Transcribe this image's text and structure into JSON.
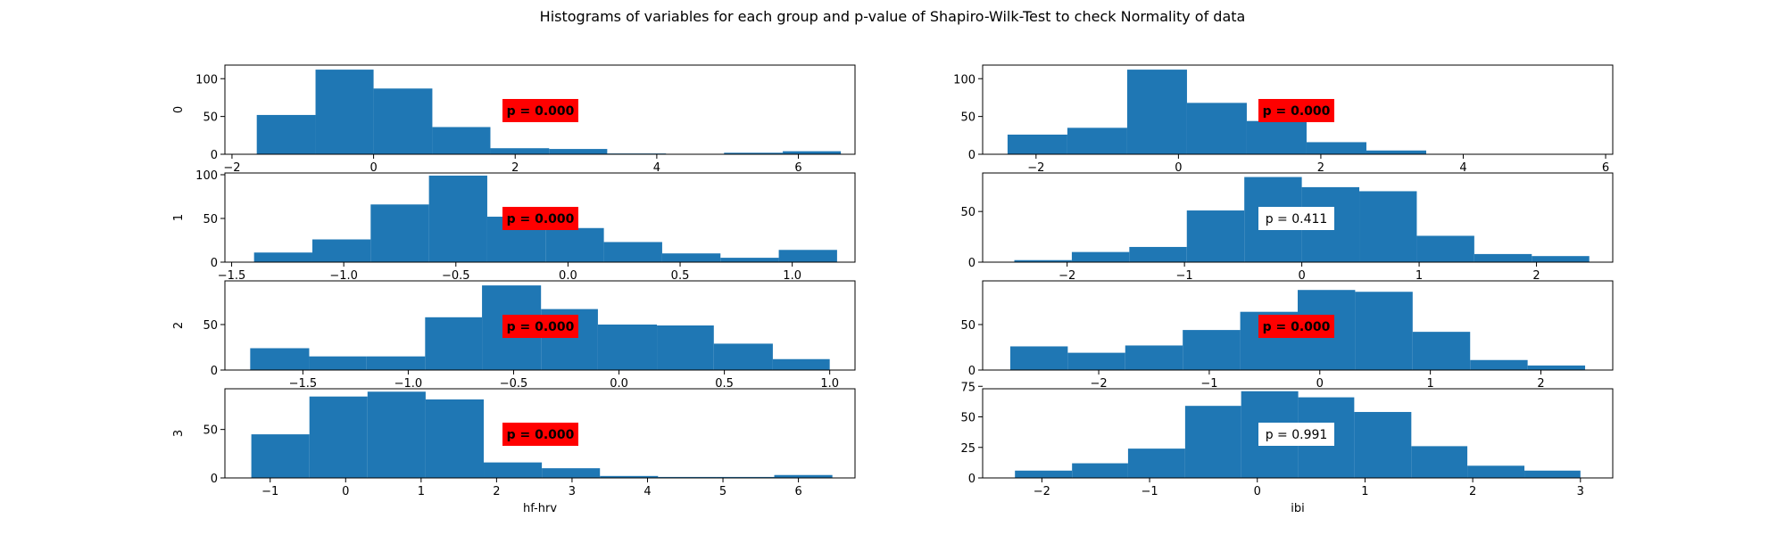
{
  "figure": {
    "title": "Histograms of variables for each group and p-value of Shapiro-Wilk-Test to check Normality of data",
    "bar_color": "#1f77b4",
    "fail_box_color": "#ff0000",
    "pass_box_color": "#ffffff"
  },
  "chart_data": [
    {
      "type": "bar",
      "group": "0",
      "variable": "hf-hrv",
      "ylabel": "0",
      "xlabel": "",
      "xlim": [
        -2.1,
        6.8
      ],
      "ylim": [
        0,
        118
      ],
      "xticks": [
        -2,
        0,
        2,
        4,
        6
      ],
      "yticks": [
        0,
        50,
        100
      ],
      "bin_edges": [
        -1.65,
        -0.82,
        0.0,
        0.83,
        1.65,
        2.48,
        3.3,
        4.13,
        4.95,
        5.78,
        6.6
      ],
      "values": [
        52,
        112,
        87,
        36,
        8,
        7,
        1,
        0,
        2,
        4
      ],
      "p_label": "p = 0.000",
      "significant": true
    },
    {
      "type": "bar",
      "group": "0",
      "variable": "ibi",
      "ylabel": "",
      "xlabel": "",
      "xlim": [
        -2.75,
        6.1
      ],
      "ylim": [
        0,
        118
      ],
      "xticks": [
        -2,
        0,
        2,
        4,
        6
      ],
      "yticks": [
        0,
        50,
        100
      ],
      "bin_edges": [
        -2.4,
        -1.56,
        -0.72,
        0.12,
        0.96,
        1.8,
        2.64,
        3.48,
        4.32,
        5.16,
        6.0
      ],
      "values": [
        26,
        35,
        112,
        68,
        44,
        16,
        5,
        0,
        0,
        0
      ],
      "p_label": "p = 0.000",
      "significant": true
    },
    {
      "type": "bar",
      "group": "1",
      "variable": "hf-hrv",
      "ylabel": "1",
      "xlabel": "",
      "xlim": [
        -1.53,
        1.28
      ],
      "ylim": [
        0,
        102
      ],
      "xticks": [
        -1.5,
        -1.0,
        -0.5,
        0.0,
        0.5,
        1.0
      ],
      "yticks": [
        0,
        50,
        100
      ],
      "bin_edges": [
        -1.4,
        -1.14,
        -0.88,
        -0.62,
        -0.36,
        -0.1,
        0.16,
        0.42,
        0.68,
        0.94,
        1.2
      ],
      "values": [
        11,
        26,
        66,
        99,
        52,
        39,
        23,
        10,
        5,
        14
      ],
      "p_label": "p = 0.000",
      "significant": true
    },
    {
      "type": "bar",
      "group": "1",
      "variable": "ibi",
      "ylabel": "",
      "xlabel": "",
      "xlim": [
        -2.72,
        2.65
      ],
      "ylim": [
        0,
        88
      ],
      "xticks": [
        -2,
        -1,
        0,
        1,
        2
      ],
      "yticks": [
        0,
        50
      ],
      "bin_edges": [
        -2.45,
        -1.96,
        -1.47,
        -0.98,
        -0.49,
        0.0,
        0.49,
        0.98,
        1.47,
        1.96,
        2.45
      ],
      "values": [
        2,
        10,
        15,
        51,
        84,
        74,
        70,
        26,
        8,
        6
      ],
      "p_label": "p = 0.411",
      "significant": false
    },
    {
      "type": "bar",
      "group": "2",
      "variable": "hf-hrv",
      "ylabel": "2",
      "xlabel": "",
      "xlim": [
        -1.87,
        1.12
      ],
      "ylim": [
        0,
        98
      ],
      "xticks": [
        -1.5,
        -1.0,
        -0.5,
        0.0,
        0.5,
        1.0
      ],
      "yticks": [
        0,
        50
      ],
      "bin_edges": [
        -1.75,
        -1.47,
        -1.2,
        -0.92,
        -0.65,
        -0.37,
        -0.1,
        0.18,
        0.45,
        0.73,
        1.0
      ],
      "values": [
        24,
        15,
        15,
        58,
        93,
        67,
        50,
        49,
        29,
        12
      ],
      "p_label": "p = 0.000",
      "significant": true
    },
    {
      "type": "bar",
      "group": "2",
      "variable": "ibi",
      "ylabel": "",
      "xlabel": "",
      "xlim": [
        -3.05,
        2.65
      ],
      "ylim": [
        0,
        98
      ],
      "xticks": [
        -2,
        -1,
        0,
        1,
        2
      ],
      "yticks": [
        0,
        50
      ],
      "bin_edges": [
        -2.8,
        -2.28,
        -1.76,
        -1.24,
        -0.72,
        -0.2,
        0.32,
        0.84,
        1.36,
        1.88,
        2.4
      ],
      "values": [
        26,
        19,
        27,
        44,
        64,
        88,
        86,
        42,
        11,
        5
      ],
      "p_label": "p = 0.000",
      "significant": true
    },
    {
      "type": "bar",
      "group": "3",
      "variable": "hf-hrv",
      "ylabel": "3",
      "xlabel": "hf-hrv",
      "xlim": [
        -1.6,
        6.75
      ],
      "ylim": [
        0,
        92
      ],
      "xticks": [
        -1,
        0,
        1,
        2,
        3,
        4,
        5,
        6
      ],
      "yticks": [
        0,
        50
      ],
      "bin_edges": [
        -1.25,
        -0.48,
        0.29,
        1.06,
        1.83,
        2.6,
        3.37,
        4.14,
        4.91,
        5.68,
        6.45
      ],
      "values": [
        45,
        84,
        89,
        81,
        16,
        10,
        2,
        1,
        1,
        3
      ],
      "p_label": "p = 0.000",
      "significant": true
    },
    {
      "type": "bar",
      "group": "3",
      "variable": "ibi",
      "ylabel": "",
      "xlabel": "ibi",
      "xlim": [
        -2.55,
        3.3
      ],
      "ylim": [
        0,
        73
      ],
      "xticks": [
        -2,
        -1,
        0,
        1,
        2,
        3
      ],
      "yticks": [
        0,
        25,
        50,
        75
      ],
      "bin_edges": [
        -2.25,
        -1.72,
        -1.2,
        -0.67,
        -0.15,
        0.38,
        0.9,
        1.43,
        1.95,
        2.48,
        3.0
      ],
      "values": [
        6,
        12,
        24,
        59,
        71,
        66,
        54,
        26,
        10,
        6
      ],
      "p_label": "p = 0.991",
      "significant": false
    }
  ]
}
